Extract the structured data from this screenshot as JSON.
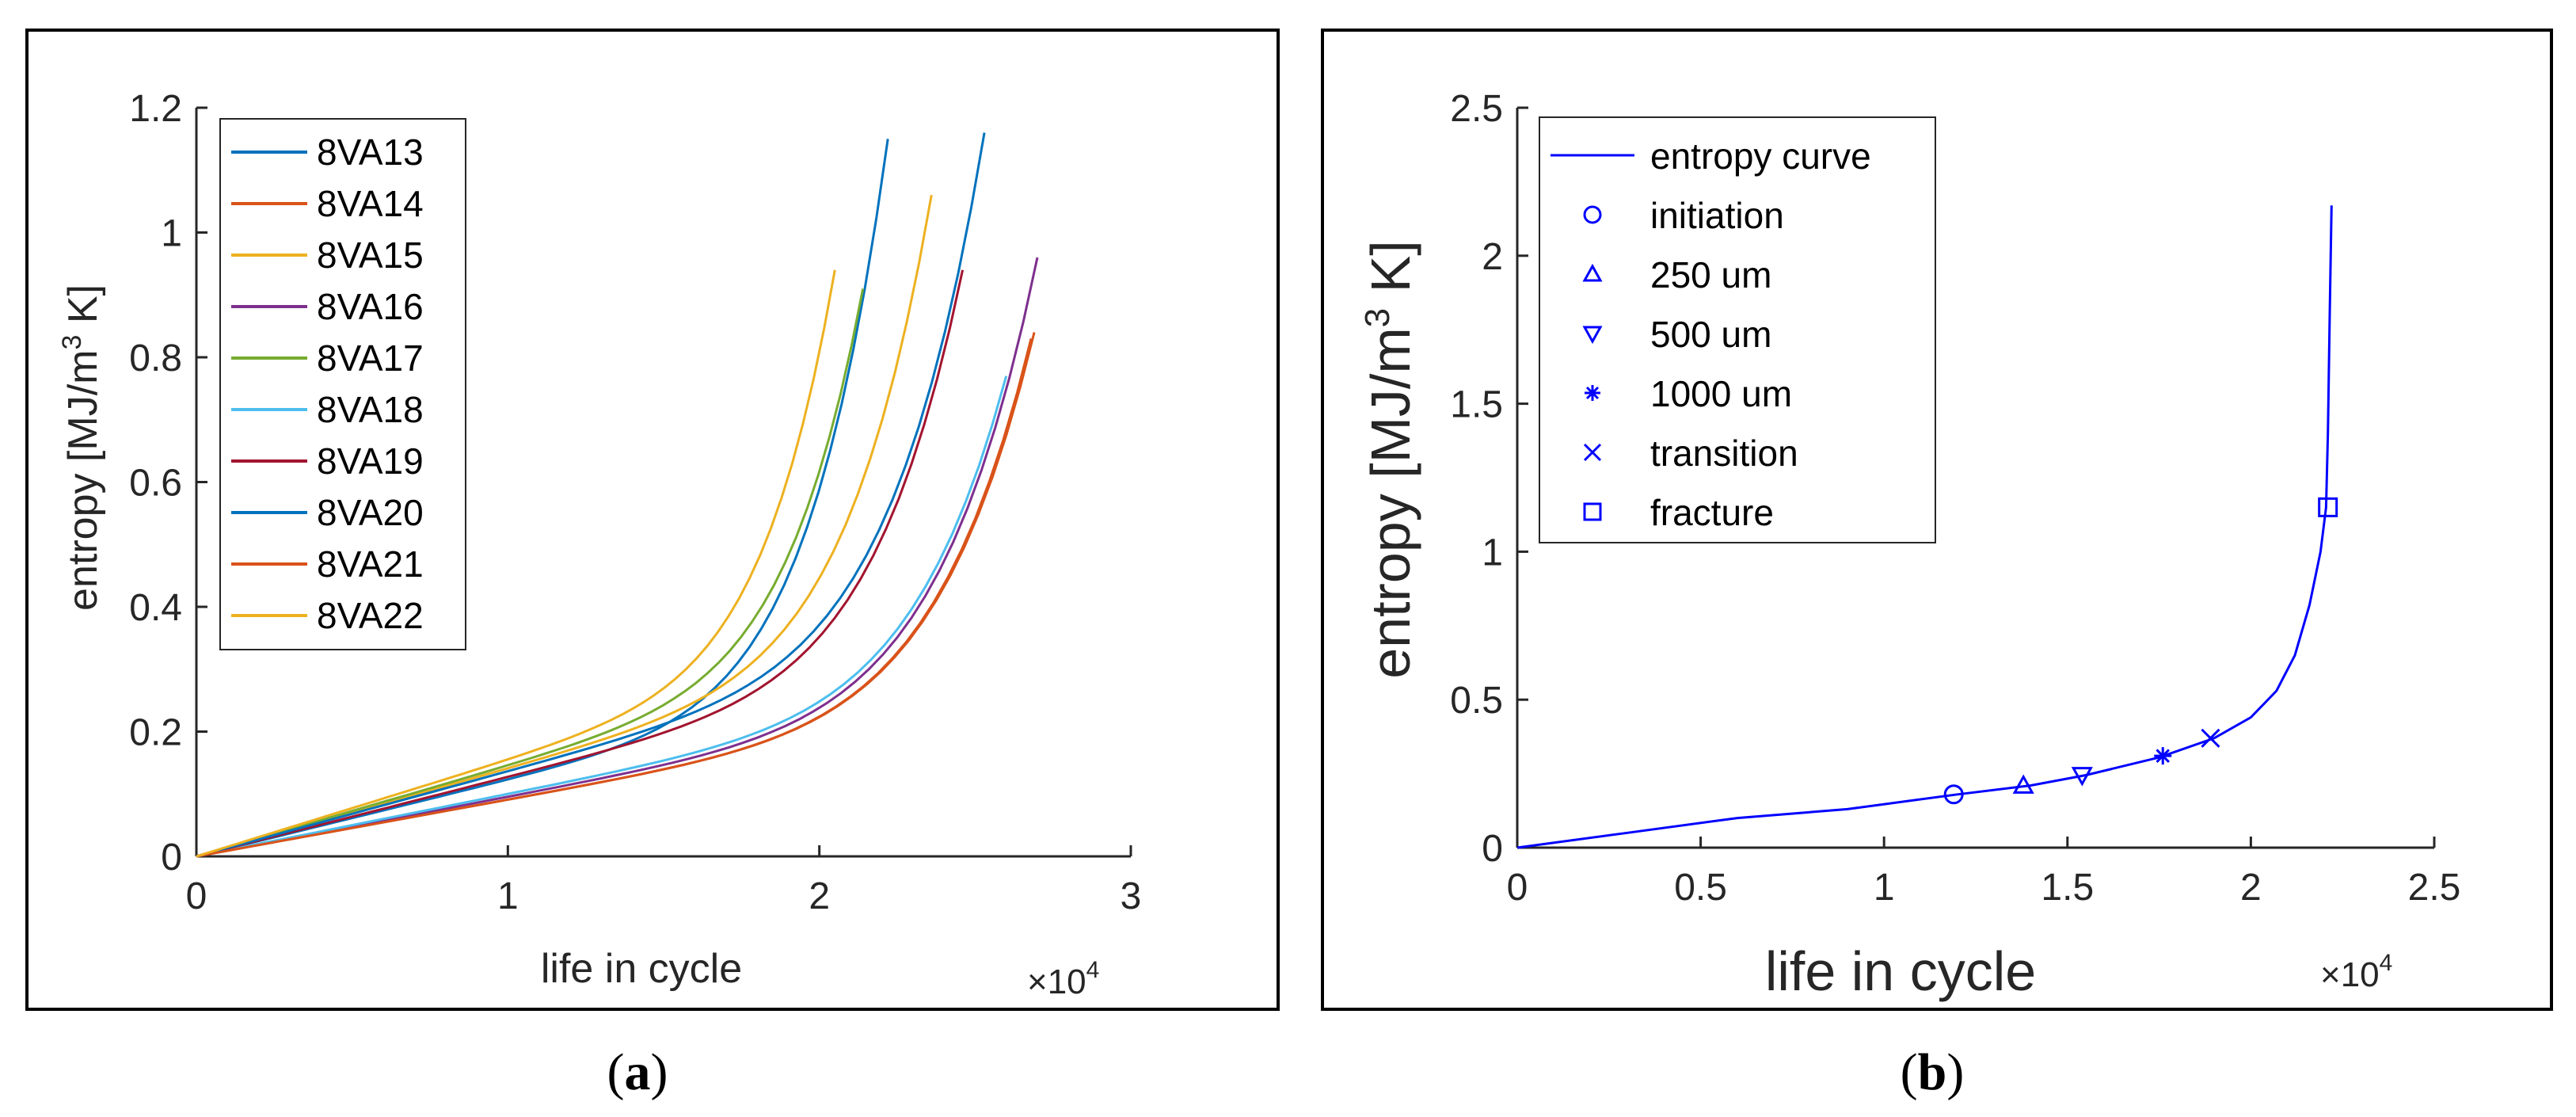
{
  "chart_data": [
    {
      "type": "line",
      "panel": "a",
      "xlabel": "life in cycle",
      "ylabel_prefix": "entropy [MJ/m",
      "ylabel_sup": "3",
      "ylabel_suffix": " K]",
      "x_multiplier_prefix": "×10",
      "x_multiplier_exp": "4",
      "xlim": [
        0,
        3
      ],
      "ylim": [
        0,
        1.2
      ],
      "xticks": [
        0,
        1,
        2,
        3
      ],
      "xtick_labels": [
        "0",
        "1",
        "2",
        "3"
      ],
      "yticks": [
        0,
        0.2,
        0.4,
        0.6,
        0.8,
        1,
        1.2
      ],
      "ytick_labels": [
        "0",
        "0.2",
        "0.4",
        "0.6",
        "0.8",
        "1",
        "1.2"
      ],
      "legend_position": "top-left",
      "caption_open": "(",
      "caption_letter": "a",
      "caption_close": ")",
      "series": [
        {
          "name": "8VA13",
          "color": "#0072BD",
          "end_x": 2.22,
          "end_y": 1.15,
          "mid_y": 0.135
        },
        {
          "name": "8VA14",
          "color": "#D95319",
          "end_x": 2.68,
          "end_y": 0.83,
          "mid_y": 0.1
        },
        {
          "name": "8VA15",
          "color": "#EDB120",
          "end_x": 2.36,
          "end_y": 1.06,
          "mid_y": 0.155
        },
        {
          "name": "8VA16",
          "color": "#7E2F8E",
          "end_x": 2.7,
          "end_y": 0.96,
          "mid_y": 0.105
        },
        {
          "name": "8VA17",
          "color": "#77AC30",
          "end_x": 2.14,
          "end_y": 0.91,
          "mid_y": 0.16
        },
        {
          "name": "8VA18",
          "color": "#4DBEEE",
          "end_x": 2.6,
          "end_y": 0.77,
          "mid_y": 0.11
        },
        {
          "name": "8VA19",
          "color": "#A2142F",
          "end_x": 2.46,
          "end_y": 0.94,
          "mid_y": 0.14
        },
        {
          "name": "8VA20",
          "color": "#0072BD",
          "end_x": 2.53,
          "end_y": 1.16,
          "mid_y": 0.15
        },
        {
          "name": "8VA21",
          "color": "#D95319",
          "end_x": 2.69,
          "end_y": 0.84,
          "mid_y": 0.1
        },
        {
          "name": "8VA22",
          "color": "#EDB120",
          "end_x": 2.05,
          "end_y": 0.94,
          "mid_y": 0.17
        }
      ]
    },
    {
      "type": "line",
      "panel": "b",
      "xlabel": "life in cycle",
      "ylabel_prefix": "entropy [MJ/m",
      "ylabel_sup": "3",
      "ylabel_suffix": " K]",
      "x_multiplier_prefix": "×10",
      "x_multiplier_exp": "4",
      "xlim": [
        0,
        2.5
      ],
      "ylim": [
        0,
        2.5
      ],
      "xticks": [
        0,
        0.5,
        1,
        1.5,
        2,
        2.5
      ],
      "xtick_labels": [
        "0",
        "0.5",
        "1",
        "1.5",
        "2",
        "2.5"
      ],
      "yticks": [
        0,
        0.5,
        1,
        1.5,
        2,
        2.5
      ],
      "ytick_labels": [
        "0",
        "0.5",
        "1",
        "1.5",
        "2",
        "2.5"
      ],
      "legend_position": "top-left",
      "caption_open": "(",
      "caption_letter": "b",
      "caption_close": ")",
      "line_color": "#0000FF",
      "curve": {
        "name": "entropy curve",
        "x": [
          0,
          0.3,
          0.6,
          0.9,
          1.2,
          1.4,
          1.55,
          1.75,
          1.9,
          2.0,
          2.07,
          2.12,
          2.16,
          2.19,
          2.205,
          2.21,
          2.215,
          2.22
        ],
        "y": [
          0,
          0.05,
          0.1,
          0.13,
          0.18,
          0.21,
          0.245,
          0.305,
          0.37,
          0.44,
          0.53,
          0.65,
          0.82,
          1.0,
          1.15,
          1.4,
          1.8,
          2.17
        ]
      },
      "markers": [
        {
          "name": "initiation",
          "symbol": "circle",
          "x": 1.19,
          "y": 0.18
        },
        {
          "name": "250 um",
          "symbol": "triangle-up",
          "x": 1.38,
          "y": 0.21
        },
        {
          "name": "500 um",
          "symbol": "triangle-down",
          "x": 1.54,
          "y": 0.245
        },
        {
          "name": "1000 um",
          "symbol": "asterisk",
          "x": 1.76,
          "y": 0.31
        },
        {
          "name": "transition",
          "symbol": "cross",
          "x": 1.89,
          "y": 0.37
        },
        {
          "name": "fracture",
          "symbol": "square",
          "x": 2.21,
          "y": 1.15
        }
      ]
    }
  ]
}
